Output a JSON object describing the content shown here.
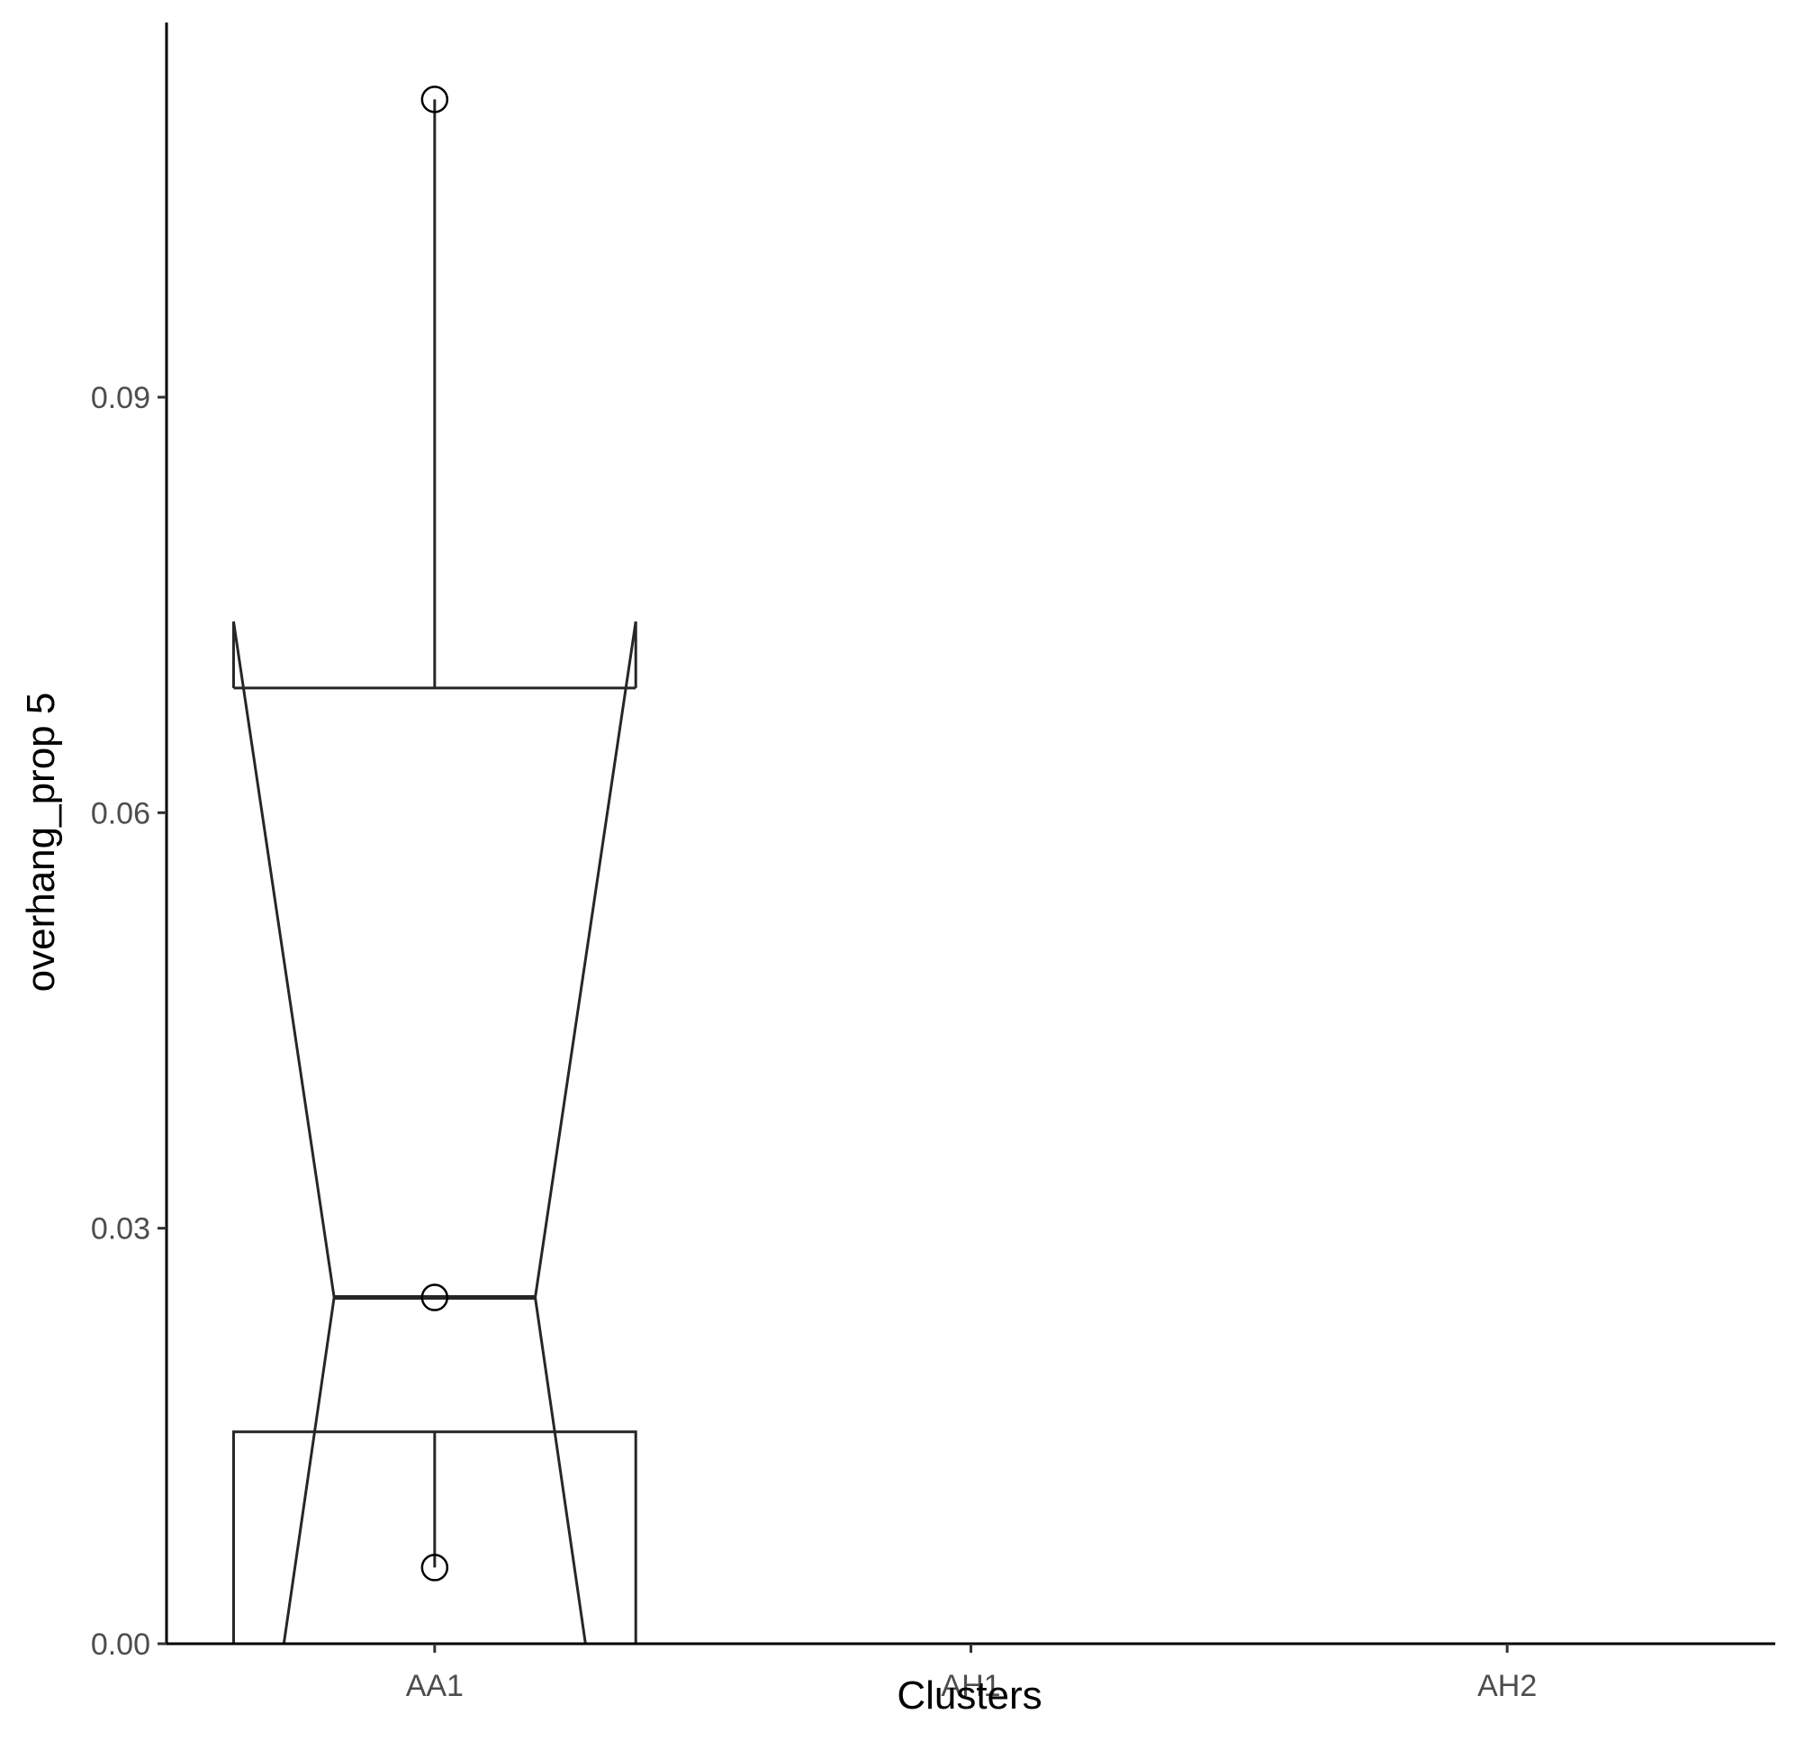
{
  "chart_data": {
    "type": "boxplot",
    "title": "",
    "xlabel": "Clusters",
    "ylabel": "overhang_prop 5",
    "categories": [
      "AA1",
      "AH1",
      "AH2"
    ],
    "ylim": [
      0,
      0.117
    ],
    "yticks": [
      0.0,
      0.03,
      0.06,
      0.09
    ],
    "ytick_labels": [
      "0.00",
      "0.03",
      "0.06",
      "0.09"
    ],
    "boxes": [
      {
        "category": "AA1",
        "q1": 0.0,
        "lower_hinge": 0.0,
        "median": 0.025,
        "upper_hinge": 0.069,
        "whisker_low": 0.0,
        "whisker_high": 0.069,
        "notch_low": 0.0,
        "notch_high": 0.0738,
        "lower_box_top": 0.0153,
        "points": [
          0.1115,
          0.025,
          0.0055
        ]
      }
    ],
    "grid": false,
    "legend": "none",
    "colors": {
      "stroke": "#262626",
      "axis": "#000000",
      "tick_text": "#4d4d4d"
    }
  }
}
